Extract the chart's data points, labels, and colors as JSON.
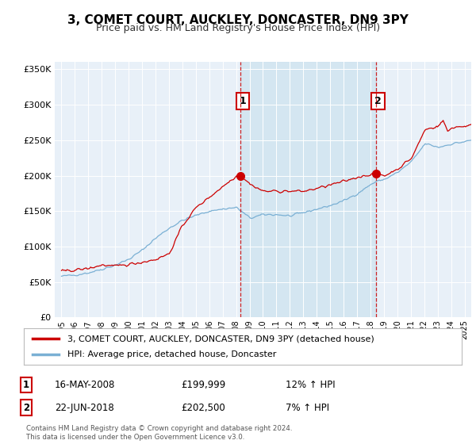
{
  "title": "3, COMET COURT, AUCKLEY, DONCASTER, DN9 3PY",
  "subtitle": "Price paid vs. HM Land Registry's House Price Index (HPI)",
  "bg_color": "#ffffff",
  "plot_bg_color": "#e8f0f8",
  "shaded_region_color": "#d0e4f0",
  "ylim": [
    0,
    360000
  ],
  "yticks": [
    0,
    50000,
    100000,
    150000,
    200000,
    250000,
    300000,
    350000
  ],
  "sale1_x": 157,
  "sale1_price": 199999,
  "sale2_x": 277,
  "sale2_price": 202500,
  "legend_line1": "3, COMET COURT, AUCKLEY, DONCASTER, DN9 3PY (detached house)",
  "legend_line2": "HPI: Average price, detached house, Doncaster",
  "annot1_date": "16-MAY-2008",
  "annot1_price": "£199,999",
  "annot1_hpi": "12% ↑ HPI",
  "annot2_date": "22-JUN-2018",
  "annot2_price": "£202,500",
  "annot2_hpi": "7% ↑ HPI",
  "copyright": "Contains HM Land Registry data © Crown copyright and database right 2024.\nThis data is licensed under the Open Government Licence v3.0.",
  "red_color": "#cc0000",
  "blue_color": "#7ab0d4",
  "vline_color": "#cc0000",
  "x_start_year": 1995,
  "x_end_year": 2025,
  "tick_years": [
    1995,
    1996,
    1997,
    1998,
    1999,
    2000,
    2001,
    2002,
    2003,
    2004,
    2005,
    2006,
    2007,
    2008,
    2009,
    2010,
    2011,
    2012,
    2013,
    2014,
    2015,
    2016,
    2017,
    2018,
    2019,
    2020,
    2021,
    2022,
    2023,
    2024,
    2025
  ]
}
